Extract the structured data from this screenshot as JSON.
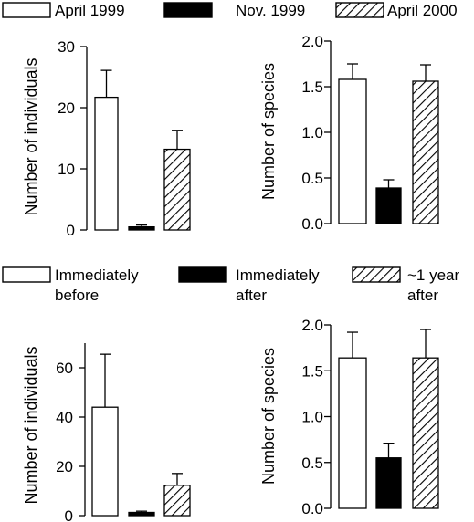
{
  "legends": [
    {
      "entries": [
        {
          "lines": [
            "April 1999"
          ],
          "fill": "white"
        },
        {
          "lines": [
            "Nov. 1999"
          ],
          "fill": "black"
        },
        {
          "lines": [
            "April 2000"
          ],
          "fill": "hatch"
        }
      ]
    },
    {
      "entries": [
        {
          "lines": [
            "Immediately",
            "before"
          ],
          "fill": "white"
        },
        {
          "lines": [
            "Immediately",
            "after"
          ],
          "fill": "black"
        },
        {
          "lines": [
            "~1 year",
            "after"
          ],
          "fill": "hatch"
        }
      ]
    }
  ],
  "colors": {
    "bar_outline": "#000000",
    "black_fill": "#000000",
    "white_fill": "#ffffff"
  },
  "chart_data": [
    {
      "type": "bar",
      "categories": [
        "April 1999",
        "Nov. 1999",
        "April 2000"
      ],
      "values": [
        21.7,
        0.5,
        13.2
      ],
      "errors": [
        4.4,
        0.3,
        3.1
      ],
      "fills": [
        "white",
        "black",
        "hatch"
      ],
      "ylabel": "Number of individuals",
      "ylim": [
        0,
        30
      ],
      "yticks": [
        0,
        10,
        20,
        30
      ],
      "ytick_labels": [
        "0",
        "10",
        "20",
        "30"
      ]
    },
    {
      "type": "bar",
      "categories": [
        "April 1999",
        "Nov. 1999",
        "April 2000"
      ],
      "values": [
        1.58,
        0.39,
        1.56
      ],
      "errors": [
        0.17,
        0.09,
        0.18
      ],
      "fills": [
        "white",
        "black",
        "hatch"
      ],
      "ylabel": "Number of species",
      "ylim": [
        0,
        2.0
      ],
      "yticks": [
        0,
        0.5,
        1.0,
        1.5,
        2.0
      ],
      "ytick_labels": [
        "0.0",
        "0.5",
        "1.0",
        "1.5",
        "2.0"
      ]
    },
    {
      "type": "bar",
      "categories": [
        "Immediately before",
        "Immediately after",
        "~1 year after"
      ],
      "values": [
        44,
        1.3,
        12.3
      ],
      "errors": [
        21.5,
        0.5,
        4.8
      ],
      "fills": [
        "white",
        "black",
        "hatch"
      ],
      "ylabel": "Number of individuals",
      "ylim": [
        0,
        70
      ],
      "yticks": [
        0,
        20,
        40,
        60
      ],
      "ytick_labels": [
        "0",
        "20",
        "40",
        "60"
      ]
    },
    {
      "type": "bar",
      "categories": [
        "Immediately before",
        "Immediately after",
        "~1 year after"
      ],
      "values": [
        1.64,
        0.55,
        1.64
      ],
      "errors": [
        0.28,
        0.16,
        0.31
      ],
      "fills": [
        "white",
        "black",
        "hatch"
      ],
      "ylabel": "Number of species",
      "ylim": [
        0,
        2.0
      ],
      "yticks": [
        0,
        0.5,
        1.0,
        1.5,
        2.0
      ],
      "ytick_labels": [
        "0.0",
        "0.5",
        "1.0",
        "1.5",
        "2.0"
      ]
    }
  ]
}
